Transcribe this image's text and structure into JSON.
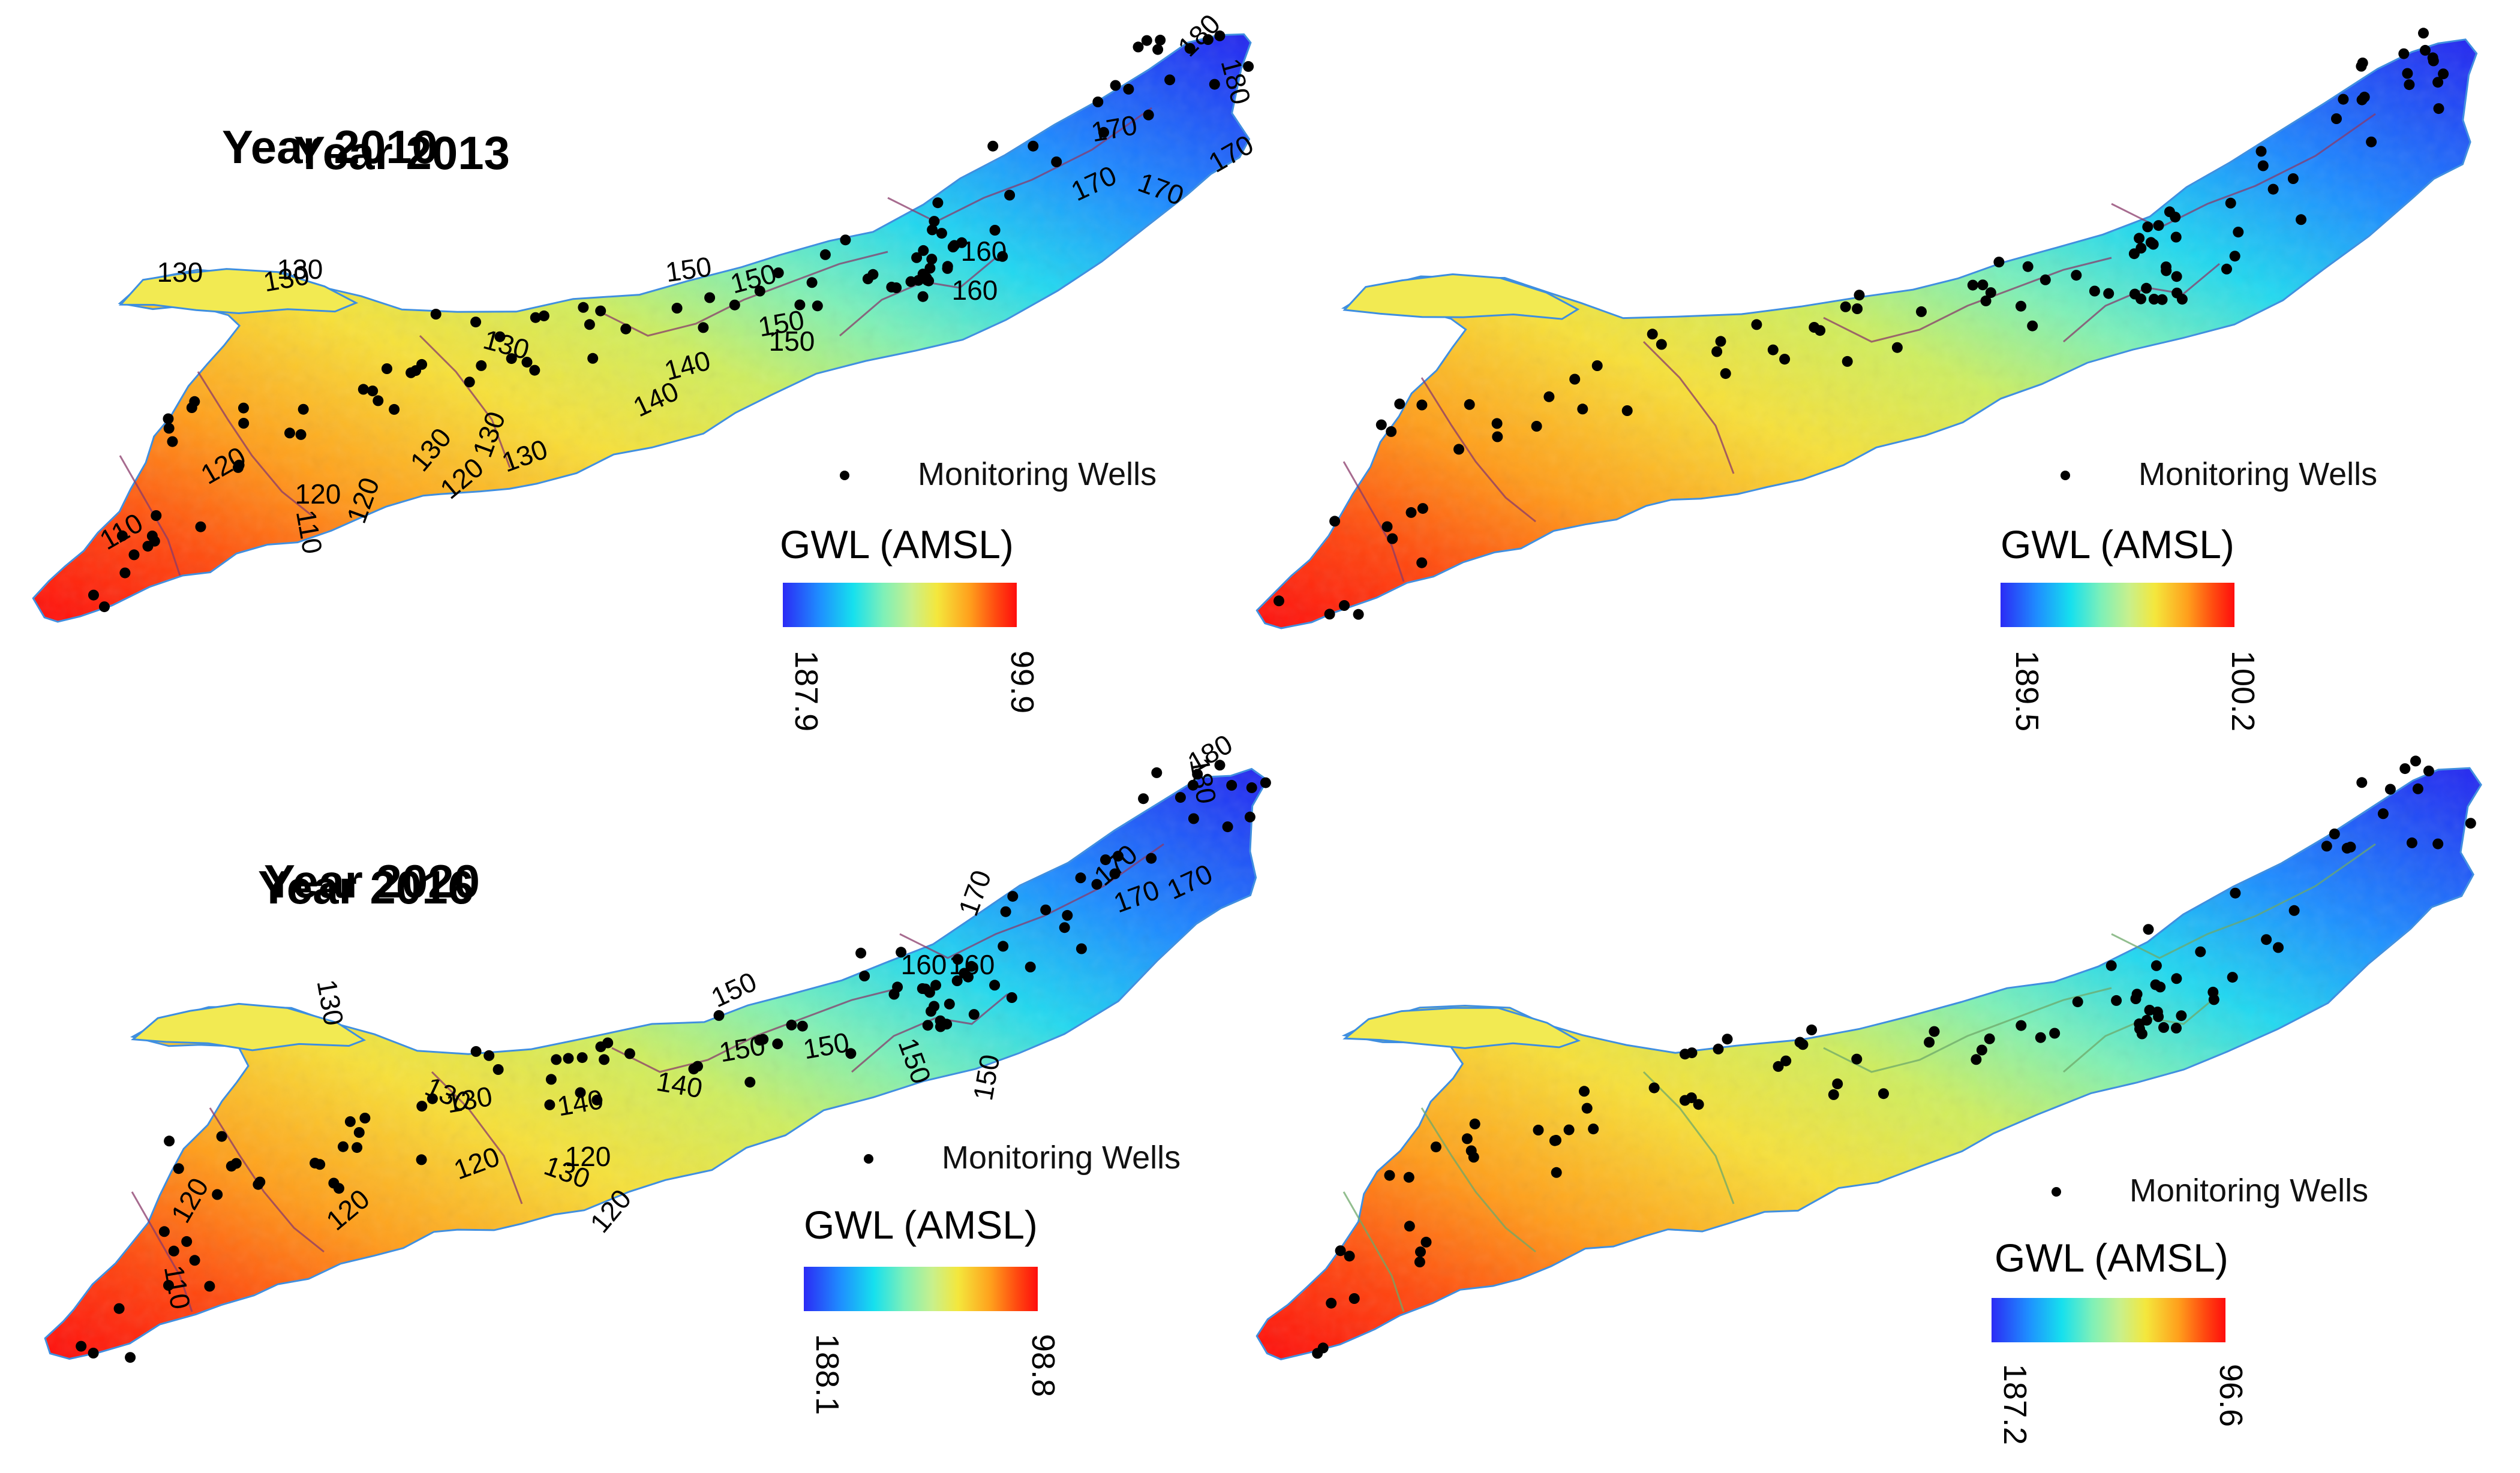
{
  "figure": {
    "legend_title": "GWL (AMSL)",
    "wells_label": "Monitoring Wells",
    "panels": [
      {
        "title": "Year 2010",
        "cb_max": "187.9",
        "cb_min": "99.9",
        "contours": [
          {
            "text": "130",
            "r": 0
          },
          {
            "text": "130",
            "r": -10
          },
          {
            "text": "150",
            "r": -8
          },
          {
            "text": "150",
            "r": 0
          },
          {
            "text": "140",
            "r": -15
          },
          {
            "text": "130",
            "r": -50
          },
          {
            "text": "130",
            "r": -20
          },
          {
            "text": "120",
            "r": -30
          },
          {
            "text": "120",
            "r": 0
          },
          {
            "text": "110",
            "r": -30
          },
          {
            "text": "160",
            "r": 0
          },
          {
            "text": "170",
            "r": -10
          },
          {
            "text": "170",
            "r": -30
          },
          {
            "text": "180",
            "r": -45
          }
        ]
      },
      {
        "title": "Year 2013",
        "cb_max": "189.5",
        "cb_min": "100.2",
        "contours": [
          {
            "text": "130",
            "r": 0
          },
          {
            "text": "130",
            "r": 15
          },
          {
            "text": "150",
            "r": -15
          },
          {
            "text": "150",
            "r": -10
          },
          {
            "text": "140",
            "r": -25
          },
          {
            "text": "130",
            "r": -70
          },
          {
            "text": "120",
            "r": -40
          },
          {
            "text": "120",
            "r": -70
          },
          {
            "text": "110",
            "r": 80
          },
          {
            "text": "160",
            "r": 0
          },
          {
            "text": "170",
            "r": -25
          },
          {
            "text": "170",
            "r": 20
          },
          {
            "text": "180",
            "r": 75
          }
        ]
      },
      {
        "title": "Year 2016",
        "cb_max": "188.1",
        "cb_min": "98.8",
        "contours": [
          {
            "text": "130",
            "r": 25
          },
          {
            "text": "140",
            "r": -10
          },
          {
            "text": "130",
            "r": 20
          },
          {
            "text": "150",
            "r": -10
          },
          {
            "text": "150",
            "r": 70
          },
          {
            "text": "160",
            "r": 0
          },
          {
            "text": "120",
            "r": -60
          },
          {
            "text": "120",
            "r": -40
          },
          {
            "text": "110",
            "r": 80
          },
          {
            "text": "170",
            "r": -70
          },
          {
            "text": "170",
            "r": -20
          },
          {
            "text": "180",
            "r": 80
          }
        ]
      },
      {
        "title": "Year 2020",
        "cb_max": "187.2",
        "cb_min": "96.6",
        "contours": [
          {
            "text": "130",
            "r": 80
          },
          {
            "text": "130",
            "r": -10
          },
          {
            "text": "150",
            "r": -25
          },
          {
            "text": "150",
            "r": -10
          },
          {
            "text": "140",
            "r": 10
          },
          {
            "text": "160",
            "r": 0
          },
          {
            "text": "150",
            "r": -80
          },
          {
            "text": "120",
            "r": -20
          },
          {
            "text": "120",
            "r": 0
          },
          {
            "text": "120",
            "r": -50
          },
          {
            "text": "170",
            "r": -40
          },
          {
            "text": "170",
            "r": -25
          },
          {
            "text": "180",
            "r": -30
          }
        ]
      }
    ]
  }
}
